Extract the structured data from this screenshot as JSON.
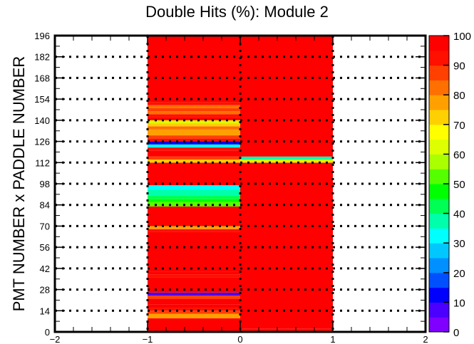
{
  "chart_data": {
    "type": "heatmap",
    "title": "Double Hits (%): Module 2",
    "xlabel": "",
    "ylabel": "PMT NUMBER x PADDLE NUMBER",
    "xlim": [
      -2,
      2
    ],
    "ylim": [
      0,
      196
    ],
    "x_ticks": [
      "−2",
      "−1",
      "0",
      "1",
      "2"
    ],
    "x_tick_values": [
      -2,
      -1,
      0,
      1,
      2
    ],
    "y_ticks": [
      "0",
      "14",
      "28",
      "42",
      "56",
      "70",
      "84",
      "98",
      "112",
      "126",
      "140",
      "154",
      "168",
      "182",
      "196"
    ],
    "y_tick_values": [
      0,
      14,
      28,
      42,
      56,
      70,
      84,
      98,
      112,
      126,
      140,
      154,
      168,
      182,
      196
    ],
    "grid": "dotted horizontal lines at every y tick; dotted vertical lines at x = -1, 0, 1",
    "colorbar": {
      "min": 0,
      "max": 100,
      "ticks": [
        "0",
        "10",
        "20",
        "30",
        "40",
        "50",
        "60",
        "70",
        "80",
        "90",
        "100"
      ],
      "tick_values": [
        0,
        10,
        20,
        30,
        40,
        50,
        60,
        70,
        80,
        90,
        100
      ],
      "palette": [
        "#7f00ff",
        "#4b00ff",
        "#0000ff",
        "#0050ff",
        "#0090ff",
        "#00c8ff",
        "#00ffff",
        "#00ffaa",
        "#00ff55",
        "#00ff00",
        "#55ff00",
        "#aaff00",
        "#ddff00",
        "#ffff00",
        "#ffd000",
        "#ffa000",
        "#ff7000",
        "#ff4000",
        "#ff1000",
        "#ff0000"
      ]
    },
    "columns": [
      {
        "name": "x = -1 to 0",
        "x_range": [
          -1,
          0
        ],
        "bins": [
          {
            "y": [
              0,
              9
            ],
            "value": 97
          },
          {
            "y": [
              9,
              12
            ],
            "value": 78
          },
          {
            "y": [
              12,
              14
            ],
            "value": 86
          },
          {
            "y": [
              14,
              16
            ],
            "value": 90
          },
          {
            "y": [
              16,
              18
            ],
            "value": 95
          },
          {
            "y": [
              18,
              22
            ],
            "value": 98
          },
          {
            "y": [
              22,
              24
            ],
            "value": 86
          },
          {
            "y": [
              24,
              26
            ],
            "value": 8
          },
          {
            "y": [
              26,
              36
            ],
            "value": 97
          },
          {
            "y": [
              36,
              38
            ],
            "value": 90
          },
          {
            "y": [
              38,
              40
            ],
            "value": 95
          },
          {
            "y": [
              40,
              66
            ],
            "value": 98
          },
          {
            "y": [
              66,
              68
            ],
            "value": 90
          },
          {
            "y": [
              68,
              70
            ],
            "value": 75
          },
          {
            "y": [
              70,
              83
            ],
            "value": 97
          },
          {
            "y": [
              83,
              86
            ],
            "value": 53
          },
          {
            "y": [
              86,
              88
            ],
            "value": 45
          },
          {
            "y": [
              88,
              90
            ],
            "value": 40
          },
          {
            "y": [
              90,
              94
            ],
            "value": 38
          },
          {
            "y": [
              94,
              97
            ],
            "value": 34
          },
          {
            "y": [
              97,
              112
            ],
            "value": 97
          },
          {
            "y": [
              112,
              114
            ],
            "value": 72
          },
          {
            "y": [
              114,
              116
            ],
            "value": 88
          },
          {
            "y": [
              116,
              120
            ],
            "value": 98
          },
          {
            "y": [
              120,
              122
            ],
            "value": 90
          },
          {
            "y": [
              122,
              124
            ],
            "value": 34
          },
          {
            "y": [
              124,
              126
            ],
            "value": 14
          },
          {
            "y": [
              126,
              128
            ],
            "value": 94
          },
          {
            "y": [
              128,
              130
            ],
            "value": 88
          },
          {
            "y": [
              130,
              134
            ],
            "value": 76
          },
          {
            "y": [
              134,
              136
            ],
            "value": 84
          },
          {
            "y": [
              136,
              138
            ],
            "value": 72
          },
          {
            "y": [
              138,
              140
            ],
            "value": 62
          },
          {
            "y": [
              140,
              142
            ],
            "value": 97
          },
          {
            "y": [
              142,
              144
            ],
            "value": 92
          },
          {
            "y": [
              144,
              146
            ],
            "value": 80
          },
          {
            "y": [
              146,
              148
            ],
            "value": 88
          },
          {
            "y": [
              148,
              150
            ],
            "value": 84
          },
          {
            "y": [
              150,
              152
            ],
            "value": 92
          },
          {
            "y": [
              152,
              196
            ],
            "value": 98
          }
        ]
      },
      {
        "name": "x = 0 to 1",
        "x_range": [
          0,
          1
        ],
        "bins": [
          {
            "y": [
              0,
              2
            ],
            "value": 92
          },
          {
            "y": [
              2,
              112
            ],
            "value": 98
          },
          {
            "y": [
              112,
              114
            ],
            "value": 60
          },
          {
            "y": [
              114,
              116
            ],
            "value": 38
          },
          {
            "y": [
              116,
              196
            ],
            "value": 98
          }
        ]
      }
    ]
  }
}
